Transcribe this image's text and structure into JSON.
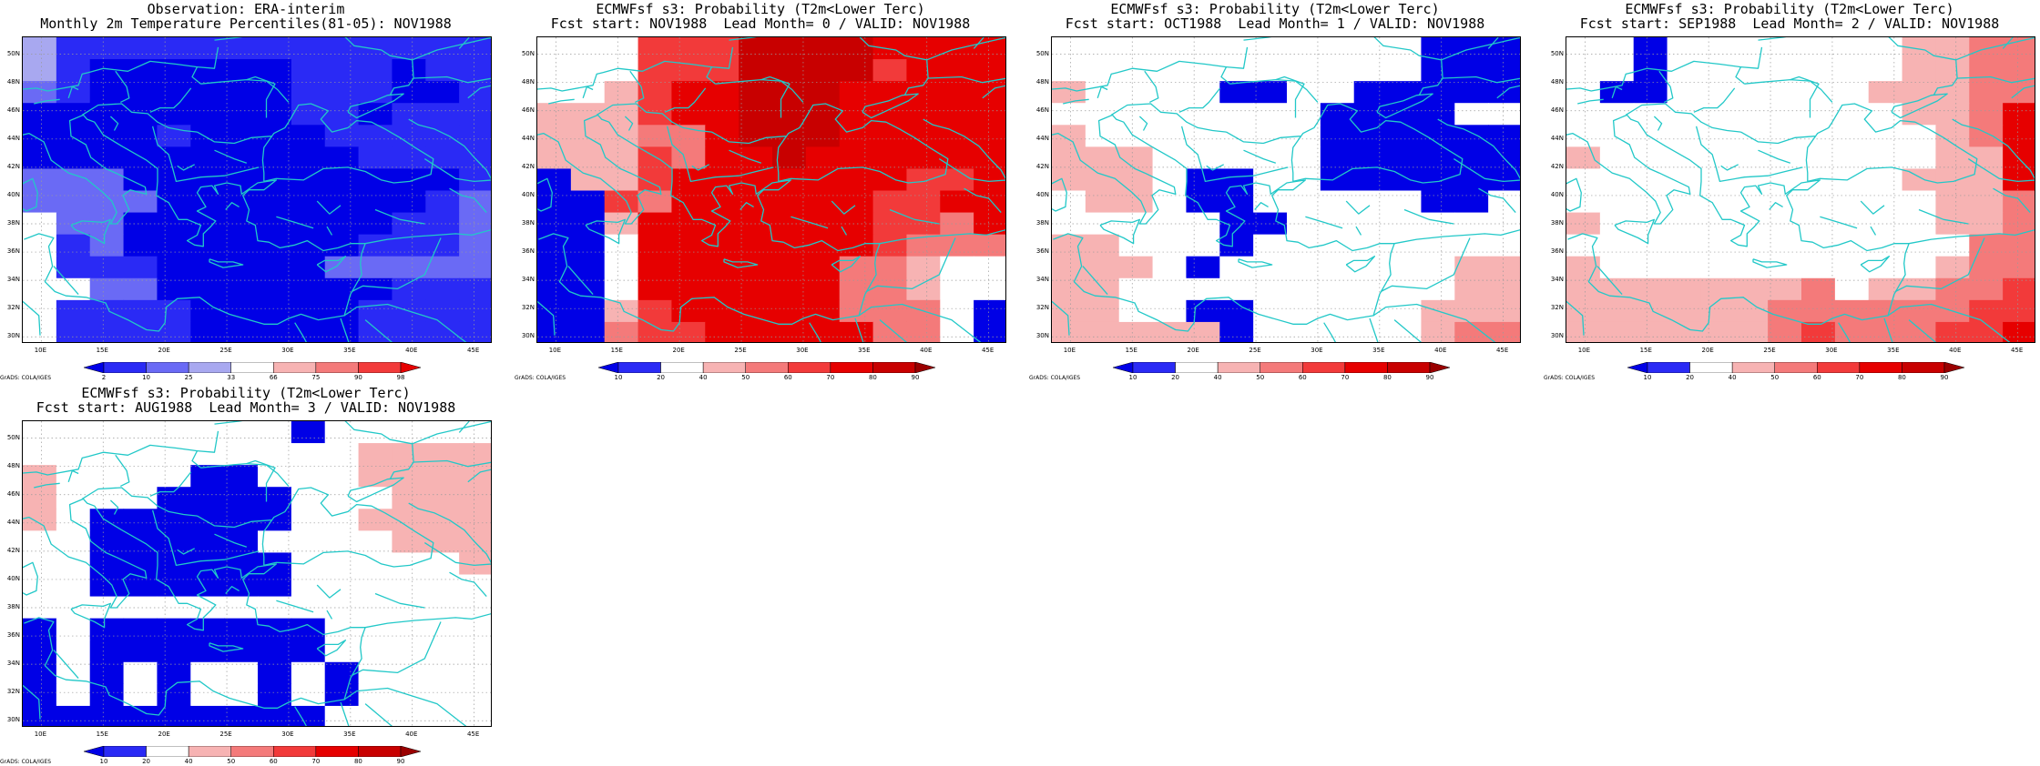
{
  "colors": {
    "coast": "#22c8c8",
    "grid": "#9a9a9a",
    "level_palette": [
      "#0000e6",
      "#2a2af5",
      "#6a6af5",
      "#a8a8f0",
      "#ffffff",
      "#f7b3b3",
      "#f47a7a",
      "#f23a3a",
      "#e60000",
      "#c80000",
      "#9a0000"
    ]
  },
  "panels": [
    {
      "title1": "Observation: ERA-interim",
      "title2": "Monthly 2m Temperature Percentiles(81-05): NOV1988",
      "lat_labels": [
        "50N",
        "48N",
        "46N",
        "44N",
        "42N",
        "40N",
        "38N",
        "36N",
        "34N",
        "32N",
        "30N"
      ],
      "lon_labels": [
        "10E",
        "15E",
        "20E",
        "25E",
        "30E",
        "35E",
        "40E",
        "45E"
      ],
      "colorbar": {
        "labels": [
          "2",
          "10",
          "25",
          "33",
          "66",
          "75",
          "90",
          "98"
        ],
        "colors": [
          "#0000e6",
          "#2a2af5",
          "#6a6af5",
          "#a8a8f0",
          "#ffffff",
          "#f7b3b3",
          "#f47a7a",
          "#f23a3a",
          "#e60000"
        ]
      },
      "credit": "GrADS: COLA/IGES",
      "grid": [
        "31111111111111",
        "31000000111011",
        "21000000111001",
        "00000000110111",
        "00001000011111",
        "00000000001111",
        "22200000000001",
        "22220000000012",
        "42200000000112",
        "41200000001112",
        "41110000022222",
        "44220000000111",
        "41111000001111",
        "41111000001111"
      ]
    },
    {
      "title1": "ECMWFsf s3: Probability (T2m<Lower Terc)",
      "title2": "Fcst start: NOV1988  Lead Month= 0 / VALID: NOV1988",
      "lat_labels": [
        "50N",
        "48N",
        "46N",
        "44N",
        "42N",
        "40N",
        "38N",
        "36N",
        "34N",
        "32N",
        "30N"
      ],
      "lon_labels": [
        "10E",
        "15E",
        "20E",
        "25E",
        "30E",
        "35E",
        "40E",
        "45E"
      ],
      "colorbar": {
        "labels": [
          "10",
          "20",
          "40",
          "50",
          "60",
          "70",
          "80",
          "90"
        ],
        "colors": [
          "#0000e6",
          "#2a2af5",
          "#ffffff",
          "#f7b3b3",
          "#f47a7a",
          "#f23a3a",
          "#e60000",
          "#c80000",
          "#9a0000"
        ]
      },
      "credit": "GrADS: COLA/IGES",
      "grid": [
        "44477799998888",
        "44477799997888",
        "44578899988888",
        "55578899988888",
        "55566899988888",
        "55576889888888",
        "05578888888778",
        "00768888887788",
        "00588888887768",
        "00488888887666",
        "00488888866544",
        "00488888866544",
        "00578888866640",
        "00677888886640"
      ]
    },
    {
      "title1": "ECMWFsf s3: Probability (T2m<Lower Terc)",
      "title2": "Fcst start: OCT1988  Lead Month= 1 / VALID: NOV1988",
      "lat_labels": [
        "50N",
        "48N",
        "46N",
        "44N",
        "42N",
        "40N",
        "38N",
        "36N",
        "34N",
        "32N",
        "30N"
      ],
      "lon_labels": [
        "10E",
        "15E",
        "20E",
        "25E",
        "30E",
        "35E",
        "40E",
        "45E"
      ],
      "colorbar": {
        "labels": [
          "10",
          "20",
          "40",
          "50",
          "60",
          "70",
          "80",
          "90"
        ],
        "colors": [
          "#0000e6",
          "#2a2af5",
          "#ffffff",
          "#f7b3b3",
          "#f47a7a",
          "#f23a3a",
          "#e60000",
          "#c80000",
          "#9a0000"
        ]
      },
      "credit": "GrADS: COLA/IGES",
      "grid": [
        "44444444444000",
        "44444444444000",
        "54444004400000",
        "44444444000044",
        "54444444000000",
        "55544444000000",
        "55540044000000",
        "45540044444004",
        "44444004444444",
        "55444044444444",
        "55540444444455",
        "55444444444455",
        "55440044444555",
        "55555044444566"
      ]
    },
    {
      "title1": "ECMWFsf s3: Probability (T2m<Lower Terc)",
      "title2": "Fcst start: SEP1988  Lead Month= 2 / VALID: NOV1988",
      "lat_labels": [
        "50N",
        "48N",
        "46N",
        "44N",
        "42N",
        "40N",
        "38N",
        "36N",
        "34N",
        "32N",
        "30N"
      ],
      "lon_labels": [
        "10E",
        "15E",
        "20E",
        "25E",
        "30E",
        "35E",
        "40E",
        "45E"
      ],
      "colorbar": {
        "labels": [
          "10",
          "20",
          "40",
          "50",
          "60",
          "70",
          "80",
          "90"
        ],
        "colors": [
          "#0000e6",
          "#2a2af5",
          "#ffffff",
          "#f7b3b3",
          "#f47a7a",
          "#f23a3a",
          "#e60000",
          "#c80000",
          "#9a0000"
        ]
      },
      "credit": "GrADS: COLA/IGES",
      "grid": [
        "44044444445566",
        "44044444445566",
        "40044444455566",
        "44444444445568",
        "44444444444568",
        "54444444444558",
        "44444444445558",
        "44444444444556",
        "54444444444556",
        "44444444444466",
        "54444444444566",
        "55555556455667",
        "55555566666677",
        "55555567666778"
      ]
    },
    {
      "title1": "ECMWFsf s3: Probability (T2m<Lower Terc)",
      "title2": "Fcst start: AUG1988  Lead Month= 3 / VALID: NOV1988",
      "lat_labels": [
        "50N",
        "48N",
        "46N",
        "44N",
        "42N",
        "40N",
        "38N",
        "36N",
        "34N",
        "32N",
        "30N"
      ],
      "lon_labels": [
        "10E",
        "15E",
        "20E",
        "25E",
        "30E",
        "35E",
        "40E",
        "45E"
      ],
      "colorbar": {
        "labels": [
          "10",
          "20",
          "40",
          "50",
          "60",
          "70",
          "80",
          "90"
        ],
        "colors": [
          "#0000e6",
          "#2a2af5",
          "#ffffff",
          "#f7b3b3",
          "#f47a7a",
          "#f23a3a",
          "#e60000",
          "#c80000",
          "#9a0000"
        ]
      },
      "credit": "GrADS: COLA/IGES",
      "grid": [
        "44444444044444",
        "44444444445555",
        "54444004445555",
        "54440000444555",
        "54000000445555",
        "44000004444555",
        "44000000444445",
        "44000000444444",
        "44444444444444",
        "04000000044444",
        "04000000044444",
        "04040440404444",
        "04040440404444",
        "00000000044444"
      ]
    }
  ]
}
